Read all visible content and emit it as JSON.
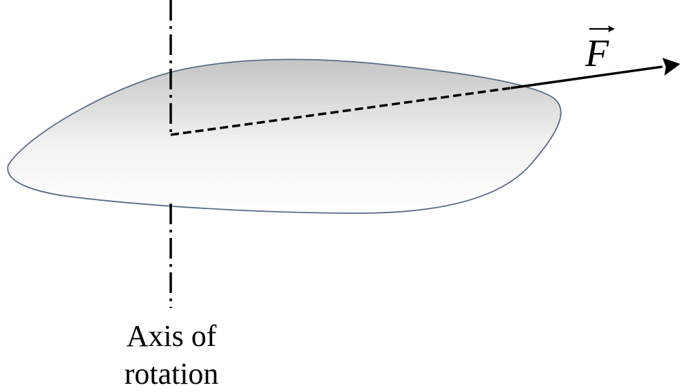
{
  "diagram": {
    "force_symbol": "F",
    "axis_label": {
      "line1": "Axis of",
      "line2": "rotation"
    },
    "colors": {
      "body_outline": "#5a6b85",
      "body_fill_dark": "#c9c9c9",
      "body_fill_light": "#ffffff",
      "lines": "#000000"
    }
  }
}
